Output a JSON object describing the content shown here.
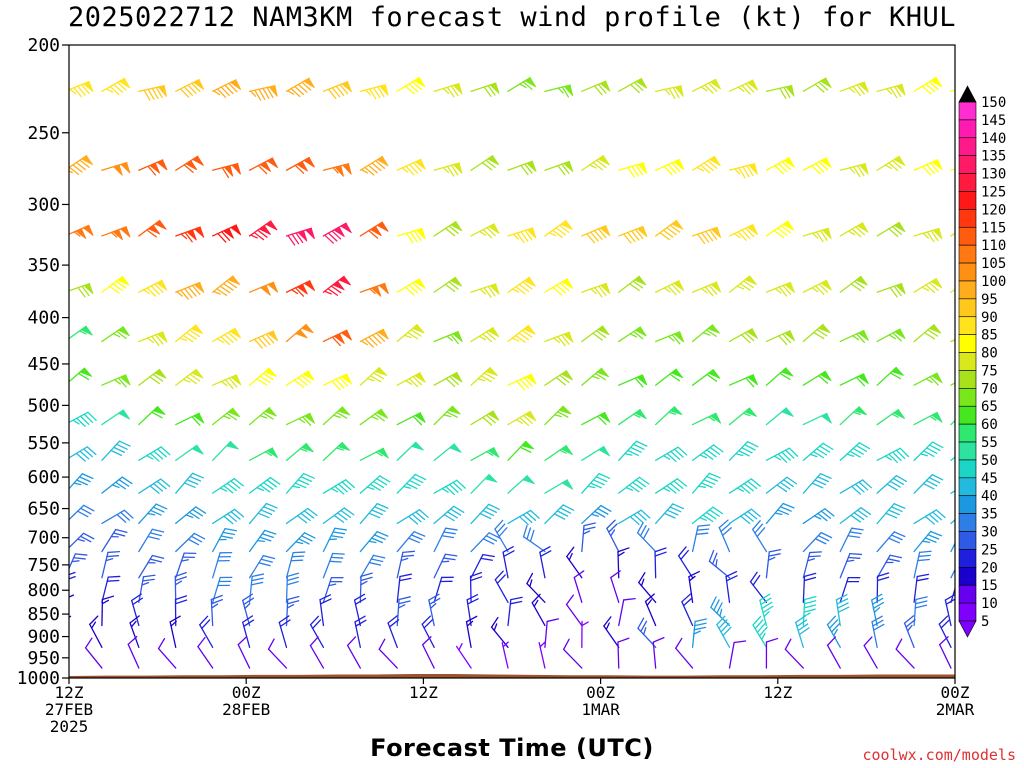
{
  "header": {
    "title": "2025022712 NAM3KM forecast wind profile (kt) for KHUL"
  },
  "footer": {
    "xlabel": "Forecast Time (UTC)",
    "credit": "coolwx.com/models"
  },
  "chart_data": {
    "type": "wind-barb-time-height",
    "title": "2025022712 NAM3KM forecast wind profile (kt) for KHUL",
    "xlabel": "Forecast Time (UTC)",
    "ylabel": "",
    "y_axis": {
      "reversed": true,
      "range": [
        200,
        1000
      ],
      "ticks": [
        200,
        250,
        300,
        350,
        400,
        450,
        500,
        550,
        600,
        650,
        700,
        750,
        800,
        850,
        900,
        950,
        1000
      ]
    },
    "x_axis": {
      "range_hours": [
        0,
        60
      ],
      "ticks": [
        {
          "hour": 0,
          "lines": [
            "12Z",
            "27FEB",
            "2025"
          ]
        },
        {
          "hour": 12,
          "lines": [
            "00Z",
            "28FEB"
          ]
        },
        {
          "hour": 24,
          "lines": [
            "12Z"
          ]
        },
        {
          "hour": 36,
          "lines": [
            "00Z",
            "1MAR"
          ]
        },
        {
          "hour": 48,
          "lines": [
            "12Z"
          ]
        },
        {
          "hour": 60,
          "lines": [
            "00Z",
            "2MAR"
          ]
        }
      ]
    },
    "colorbar": {
      "levels": [
        5,
        10,
        15,
        20,
        25,
        30,
        35,
        40,
        45,
        50,
        55,
        60,
        65,
        70,
        75,
        80,
        85,
        90,
        95,
        100,
        105,
        110,
        115,
        120,
        125,
        130,
        135,
        140,
        145,
        150
      ],
      "colors": [
        "#8000ff",
        "#6600ee",
        "#1a00cc",
        "#1f1fdd",
        "#2f5ae6",
        "#2e7ee8",
        "#1c98e0",
        "#22bbdd",
        "#1bd6c6",
        "#2ce3a0",
        "#2fe86f",
        "#45e81f",
        "#7ae61c",
        "#a8e21c",
        "#d8e81c",
        "#ffff00",
        "#ffe31c",
        "#ffc81c",
        "#ffad1c",
        "#ff9014",
        "#ff7812",
        "#ff5c10",
        "#ff3810",
        "#ff1818",
        "#ff1a40",
        "#ff1a66",
        "#ff1a8a",
        "#ff1ab0",
        "#ff2ed0",
        "#ff33ff"
      ]
    },
    "levels_hpa": [
      225,
      275,
      325,
      375,
      425,
      475,
      525,
      575,
      625,
      675,
      725,
      775,
      825,
      875,
      925,
      975
    ],
    "surface_pressure_hpa": [
      995,
      994,
      994,
      993,
      993,
      992,
      992,
      991,
      991,
      990,
      990,
      991,
      992,
      993,
      993,
      994,
      994,
      993,
      993,
      992,
      992,
      991,
      991,
      991
    ],
    "speed_profiles_kt": [
      {
        "hour": 0,
        "speeds": [
          85,
          95,
          105,
          70,
          55,
          60,
          45,
          40,
          35,
          30,
          25,
          25,
          20,
          15,
          15,
          10
        ]
      },
      {
        "hour": 6,
        "speeds": [
          90,
          110,
          110,
          90,
          80,
          70,
          60,
          45,
          40,
          35,
          30,
          25,
          25,
          20,
          15,
          10
        ]
      },
      {
        "hour": 12,
        "speeds": [
          95,
          110,
          125,
          100,
          90,
          80,
          65,
          55,
          45,
          40,
          35,
          30,
          30,
          25,
          20,
          10
        ]
      },
      {
        "hour": 18,
        "speeds": [
          90,
          105,
          130,
          125,
          110,
          80,
          65,
          55,
          45,
          40,
          35,
          30,
          25,
          20,
          20,
          10
        ]
      },
      {
        "hour": 24,
        "speeds": [
          75,
          75,
          65,
          65,
          60,
          70,
          60,
          50,
          45,
          40,
          30,
          25,
          20,
          25,
          20,
          10
        ]
      },
      {
        "hour": 30,
        "speeds": [
          65,
          70,
          85,
          85,
          85,
          80,
          75,
          60,
          50,
          40,
          30,
          20,
          20,
          20,
          15,
          5
        ]
      },
      {
        "hour": 36,
        "speeds": [
          70,
          75,
          90,
          70,
          65,
          60,
          55,
          45,
          45,
          35,
          25,
          15,
          10,
          5,
          5,
          10
        ]
      },
      {
        "hour": 42,
        "speeds": [
          75,
          85,
          90,
          75,
          65,
          60,
          55,
          45,
          45,
          45,
          30,
          20,
          15,
          20,
          35,
          10
        ]
      },
      {
        "hour": 48,
        "speeds": [
          70,
          80,
          80,
          75,
          70,
          60,
          50,
          45,
          40,
          35,
          30,
          25,
          20,
          45,
          45,
          10
        ]
      },
      {
        "hour": 54,
        "speeds": [
          75,
          75,
          70,
          70,
          65,
          60,
          55,
          45,
          40,
          40,
          30,
          25,
          20,
          40,
          30,
          10
        ]
      },
      {
        "hour": 60,
        "speeds": [
          80,
          80,
          75,
          75,
          70,
          65,
          55,
          45,
          40,
          40,
          35,
          30,
          20,
          20,
          20,
          10
        ]
      }
    ]
  }
}
